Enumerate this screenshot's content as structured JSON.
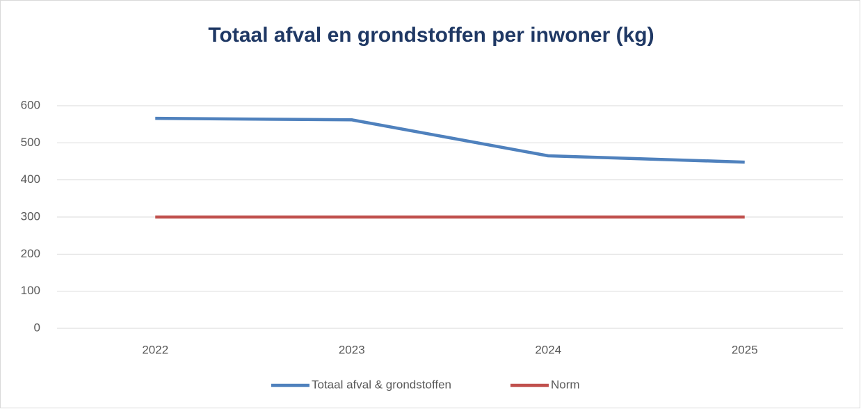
{
  "chart_data": {
    "type": "line",
    "title": "Totaal afval en grondstoffen per inwoner (kg)",
    "categories": [
      "2022",
      "2023",
      "2024",
      "2025"
    ],
    "series": [
      {
        "name": "Totaal afval & grondstoffen",
        "color": "#4f81bd",
        "values": [
          566,
          562,
          465,
          448
        ]
      },
      {
        "name": "Norm",
        "color": "#c0504d",
        "values": [
          300,
          300,
          300,
          300
        ]
      }
    ],
    "ylim": [
      0,
      600
    ],
    "yticks": [
      0,
      100,
      200,
      300,
      400,
      500,
      600
    ],
    "grid": true,
    "legend": "bottom"
  }
}
